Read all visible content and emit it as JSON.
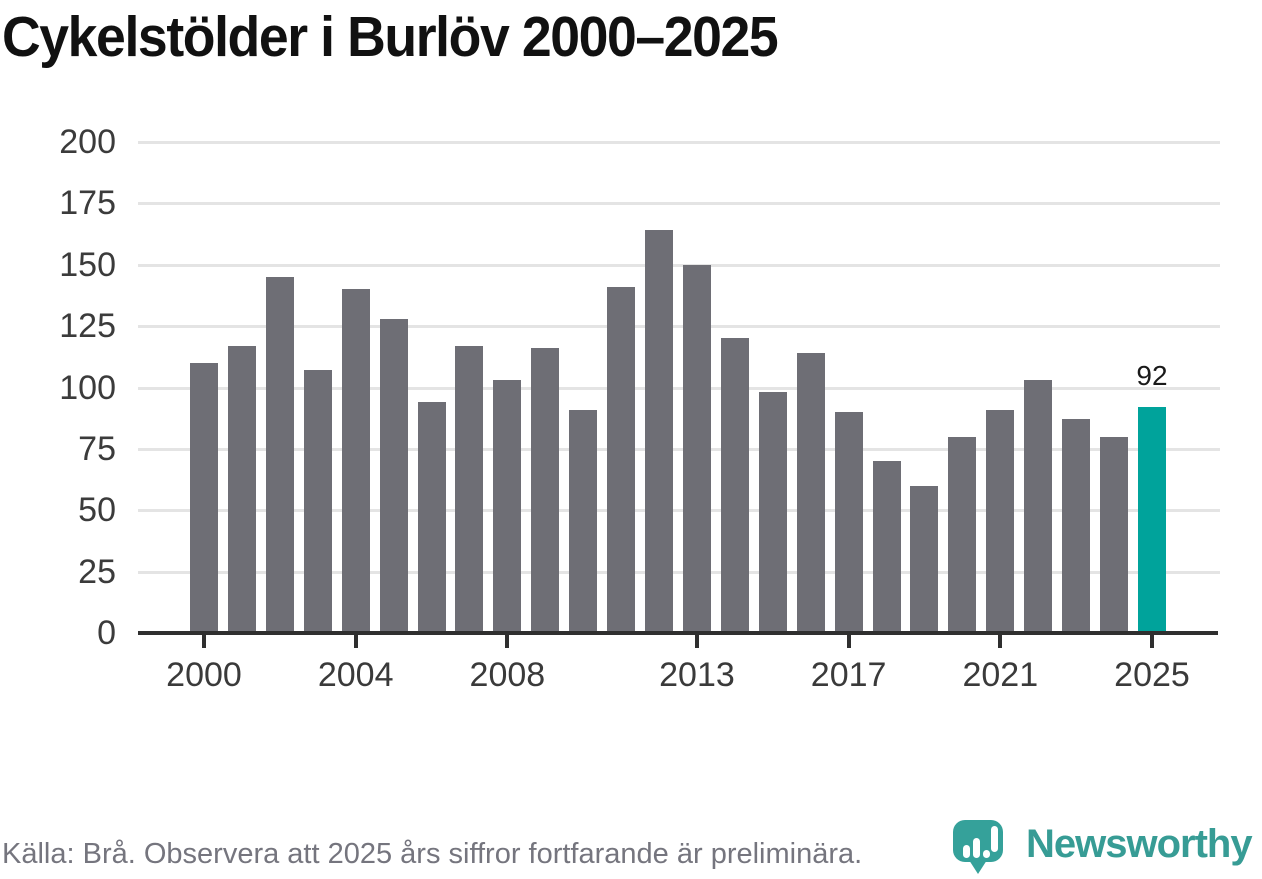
{
  "title": "Cykelstölder i Burlöv 2000–2025",
  "chart_data": {
    "type": "bar",
    "x": [
      2000,
      2001,
      2002,
      2003,
      2004,
      2005,
      2006,
      2007,
      2008,
      2009,
      2010,
      2011,
      2012,
      2013,
      2014,
      2015,
      2016,
      2017,
      2018,
      2019,
      2020,
      2021,
      2022,
      2023,
      2024,
      2025
    ],
    "values": [
      110,
      117,
      145,
      107,
      140,
      128,
      94,
      117,
      103,
      116,
      91,
      141,
      164,
      150,
      120,
      98,
      114,
      90,
      70,
      60,
      80,
      91,
      103,
      87,
      80,
      92
    ],
    "title": "Cykelstölder i Burlöv 2000–2025",
    "xlabel": "",
    "ylabel": "",
    "ylim": [
      0,
      200
    ],
    "yticks": [
      0,
      25,
      50,
      75,
      100,
      125,
      150,
      175,
      200
    ],
    "xticks": [
      2000,
      2004,
      2008,
      2013,
      2017,
      2021,
      2025
    ],
    "grid": true,
    "legend": "none",
    "highlight_x": 2025,
    "annotation": {
      "text": "92",
      "x": 2025,
      "value": 92
    },
    "colors": {
      "bar": "#6e6e75",
      "highlight": "#00a39b",
      "gridline": "#e4e4e4",
      "axis": "#2f2f2f"
    }
  },
  "footer": {
    "source_note": "Källa: Brå. Observera att 2025 års siffror fortfarande är preliminära.",
    "logo_text": "Newsworthy"
  }
}
